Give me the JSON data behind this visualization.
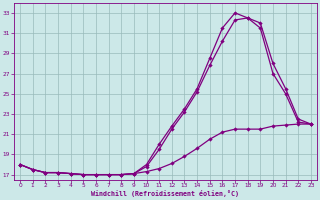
{
  "bg_color": "#cce8e8",
  "line_color": "#800080",
  "grid_color": "#99bbbb",
  "xlabel": "Windchill (Refroidissement éolien,°C)",
  "xlim": [
    -0.5,
    23.5
  ],
  "ylim": [
    16.5,
    34.0
  ],
  "yticks": [
    17,
    19,
    21,
    23,
    25,
    27,
    29,
    31,
    33
  ],
  "xticks": [
    0,
    1,
    2,
    3,
    4,
    5,
    6,
    7,
    8,
    9,
    10,
    11,
    12,
    13,
    14,
    15,
    16,
    17,
    18,
    19,
    20,
    21,
    22,
    23
  ],
  "line1_x": [
    0,
    1,
    2,
    3,
    4,
    5,
    6,
    7,
    8,
    9,
    10,
    11,
    12,
    13,
    14,
    15,
    16,
    17,
    18,
    19,
    20,
    21,
    22,
    23
  ],
  "line1_y": [
    18.0,
    17.5,
    17.2,
    17.2,
    17.1,
    17.0,
    17.0,
    17.0,
    17.0,
    17.1,
    17.3,
    17.6,
    18.1,
    18.8,
    19.6,
    20.5,
    21.2,
    21.5,
    21.5,
    21.5,
    21.8,
    21.9,
    22.0,
    22.0
  ],
  "line2_x": [
    0,
    1,
    2,
    3,
    4,
    5,
    6,
    7,
    8,
    9,
    10,
    11,
    12,
    13,
    14,
    15,
    16,
    17,
    18,
    19,
    20,
    21,
    22,
    23
  ],
  "line2_y": [
    18.0,
    17.5,
    17.2,
    17.2,
    17.1,
    17.0,
    17.0,
    17.0,
    17.0,
    17.1,
    18.0,
    20.0,
    21.8,
    23.5,
    25.5,
    28.5,
    31.5,
    33.0,
    32.5,
    32.0,
    28.0,
    25.5,
    22.5,
    22.0
  ],
  "line3_x": [
    0,
    1,
    2,
    3,
    4,
    5,
    6,
    7,
    8,
    9,
    10,
    11,
    12,
    13,
    14,
    15,
    16,
    17,
    18,
    19,
    20,
    21,
    22,
    23
  ],
  "line3_y": [
    18.0,
    17.5,
    17.2,
    17.2,
    17.1,
    17.0,
    17.0,
    17.0,
    17.0,
    17.1,
    17.8,
    19.5,
    21.5,
    23.2,
    25.2,
    27.8,
    30.2,
    32.3,
    32.5,
    31.5,
    27.0,
    25.0,
    22.2,
    22.0
  ]
}
